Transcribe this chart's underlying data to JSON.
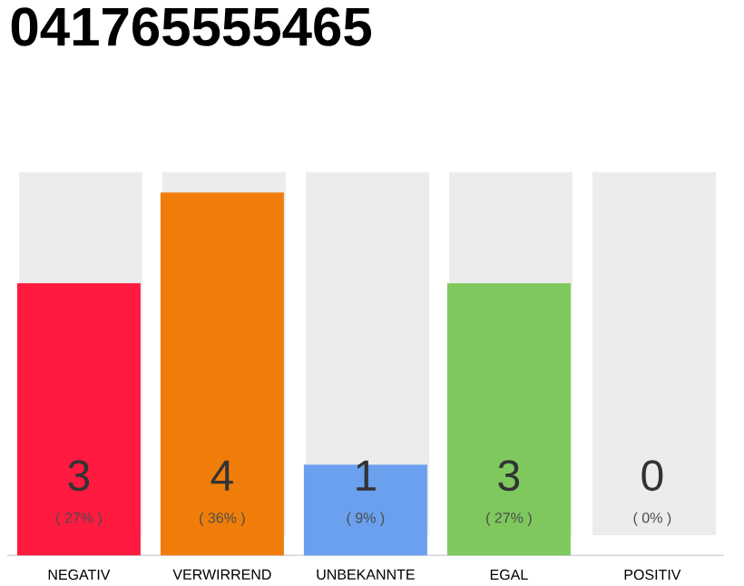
{
  "chart_data": {
    "type": "bar",
    "title": "041765555465",
    "categories": [
      "NEGATIV",
      "VERWIRREND",
      "UNBEKANNTE",
      "EGAL",
      "POSITIV"
    ],
    "values": [
      27,
      36,
      9,
      27,
      0
    ],
    "colors": [
      "#ff1a40",
      "#f07d0a",
      "#6aa0ee",
      "#7ec85e",
      "#dddddd"
    ],
    "value_labels": [
      "( 27% )",
      "( 36% )",
      "( 9% )",
      "( 27% )",
      "( 0% )"
    ],
    "annotations": [
      "3",
      "4",
      "1",
      "3",
      "0"
    ],
    "tick_labels": "x"
  }
}
